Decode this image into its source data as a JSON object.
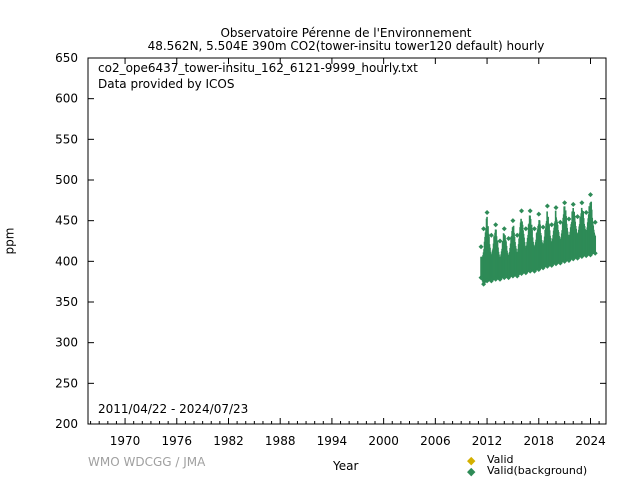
{
  "chart_data": {
    "type": "scatter",
    "title": "Observatoire Pérenne de l'Environnement",
    "subtitle": "48.562N, 5.504E 390m    CO2(tower-insitu tower120 default) hourly",
    "xlabel": "Year",
    "ylabel": "ppm",
    "xlim": [
      1965.7,
      2025.8
    ],
    "ylim": [
      200,
      650
    ],
    "x_ticks": [
      1970,
      1976,
      1982,
      1988,
      1994,
      2000,
      2006,
      2012,
      2018,
      2024
    ],
    "y_ticks": [
      200,
      250,
      300,
      350,
      400,
      450,
      500,
      550,
      600,
      650
    ],
    "annotations": {
      "file": "co2_ope6437_tower-insitu_162_6121-9999_hourly.txt",
      "provider": "Data provided by ICOS",
      "period": "2011/04/22 - 2024/07/23"
    },
    "legend": {
      "placement": "bottom-right",
      "entries": [
        {
          "label": "Valid",
          "color": "#d4b000"
        },
        {
          "label": "Valid(background)",
          "color": "#2e8b57"
        }
      ]
    },
    "series": [
      {
        "name": "Valid(background)",
        "color": "#2e8b57",
        "envelope": [
          {
            "x": 2011.3,
            "min": 380,
            "max": 418
          },
          {
            "x": 2011.6,
            "min": 372,
            "max": 440
          },
          {
            "x": 2012.0,
            "min": 376,
            "max": 460
          },
          {
            "x": 2012.5,
            "min": 376,
            "max": 432
          },
          {
            "x": 2013.0,
            "min": 378,
            "max": 445
          },
          {
            "x": 2013.5,
            "min": 378,
            "max": 425
          },
          {
            "x": 2014.0,
            "min": 380,
            "max": 440
          },
          {
            "x": 2014.5,
            "min": 380,
            "max": 428
          },
          {
            "x": 2015.0,
            "min": 382,
            "max": 450
          },
          {
            "x": 2015.5,
            "min": 382,
            "max": 432
          },
          {
            "x": 2016.0,
            "min": 385,
            "max": 462
          },
          {
            "x": 2016.5,
            "min": 386,
            "max": 440
          },
          {
            "x": 2017.0,
            "min": 388,
            "max": 462
          },
          {
            "x": 2017.5,
            "min": 388,
            "max": 440
          },
          {
            "x": 2018.0,
            "min": 390,
            "max": 458
          },
          {
            "x": 2018.5,
            "min": 392,
            "max": 442
          },
          {
            "x": 2019.0,
            "min": 394,
            "max": 468
          },
          {
            "x": 2019.5,
            "min": 395,
            "max": 445
          },
          {
            "x": 2020.0,
            "min": 397,
            "max": 466
          },
          {
            "x": 2020.5,
            "min": 398,
            "max": 448
          },
          {
            "x": 2021.0,
            "min": 400,
            "max": 472
          },
          {
            "x": 2021.5,
            "min": 401,
            "max": 452
          },
          {
            "x": 2022.0,
            "min": 403,
            "max": 470
          },
          {
            "x": 2022.5,
            "min": 404,
            "max": 455
          },
          {
            "x": 2023.0,
            "min": 406,
            "max": 472
          },
          {
            "x": 2023.5,
            "min": 407,
            "max": 460
          },
          {
            "x": 2024.0,
            "min": 408,
            "max": 482
          },
          {
            "x": 2024.55,
            "min": 410,
            "max": 448
          }
        ]
      }
    ]
  }
}
